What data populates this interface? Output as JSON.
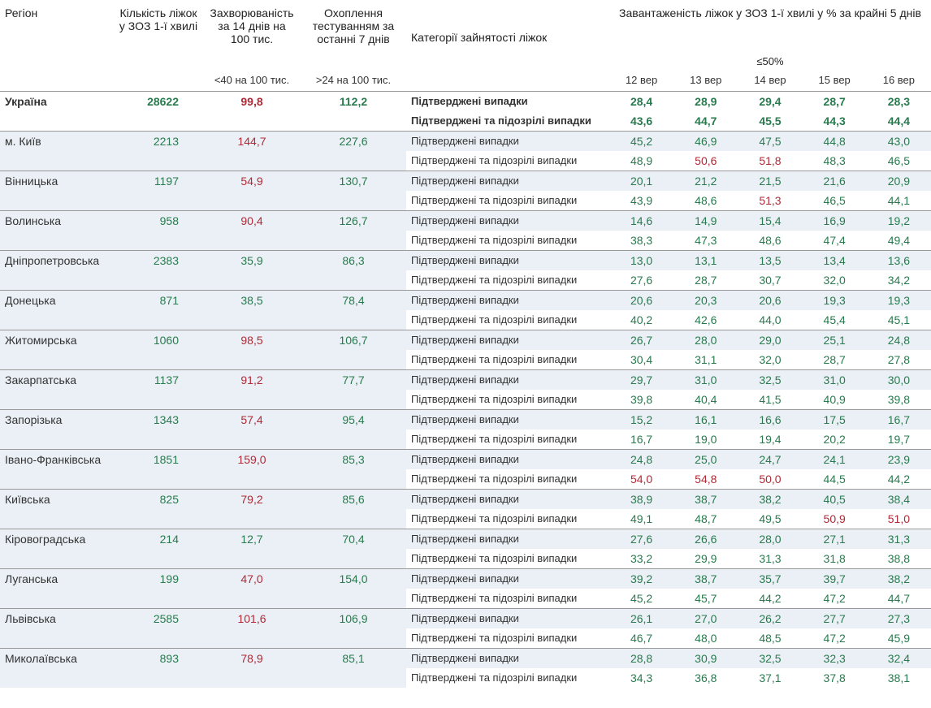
{
  "headers": {
    "region": "Регіон",
    "beds": "Кількість ліжок у ЗОЗ 1-ї хвилі",
    "incidence": "Захворюваність за 14 днів на 100 тис.",
    "testing": "Охоплення тестуванням за останні 7 днів",
    "category": "Категорії зайнятості ліжок",
    "occupancy": "Завантаженість ліжок у ЗОЗ 1-ї хвилі у % за крайні 5 днів",
    "threshold_incidence": "<40 на 100 тис.",
    "threshold_testing": ">24 на 100 тис.",
    "threshold_occupancy": "≤50%",
    "dates": [
      "12 вер",
      "13 вер",
      "14 вер",
      "15 вер",
      "16 вер"
    ]
  },
  "categories": {
    "confirmed": "Підтверджені випадки",
    "suspected": "Підтверджені та підозрілі випадки"
  },
  "colors": {
    "green": "#2a7a4f",
    "red": "#b02a37",
    "black": "#222222",
    "row_alt_bg": "#eaf0f5",
    "border": "#999999"
  },
  "threshold_red": 50.0,
  "regions": [
    {
      "name": "Україна",
      "bold": true,
      "beds": "28622",
      "incidence": "99,8",
      "incidence_red": true,
      "testing": "112,2",
      "rows": [
        {
          "cat": "confirmed",
          "bold": true,
          "vals": [
            "28,4",
            "28,9",
            "29,4",
            "28,7",
            "28,3"
          ],
          "red": [
            false,
            false,
            false,
            false,
            false
          ]
        },
        {
          "cat": "suspected",
          "bold": true,
          "vals": [
            "43,6",
            "44,7",
            "45,5",
            "44,3",
            "44,4"
          ],
          "red": [
            false,
            false,
            false,
            false,
            false
          ]
        }
      ]
    },
    {
      "name": "м. Київ",
      "beds": "2213",
      "incidence": "144,7",
      "incidence_red": true,
      "testing": "227,6",
      "rows": [
        {
          "cat": "confirmed",
          "vals": [
            "45,2",
            "46,9",
            "47,5",
            "44,8",
            "43,0"
          ],
          "red": [
            false,
            false,
            false,
            false,
            false
          ]
        },
        {
          "cat": "suspected",
          "vals": [
            "48,9",
            "50,6",
            "51,8",
            "48,3",
            "46,5"
          ],
          "red": [
            false,
            true,
            true,
            false,
            false
          ]
        }
      ]
    },
    {
      "name": "Вінницька",
      "beds": "1197",
      "incidence": "54,9",
      "incidence_red": true,
      "testing": "130,7",
      "rows": [
        {
          "cat": "confirmed",
          "vals": [
            "20,1",
            "21,2",
            "21,5",
            "21,6",
            "20,9"
          ],
          "red": [
            false,
            false,
            false,
            false,
            false
          ]
        },
        {
          "cat": "suspected",
          "vals": [
            "43,9",
            "48,6",
            "51,3",
            "46,5",
            "44,1"
          ],
          "red": [
            false,
            false,
            true,
            false,
            false
          ]
        }
      ]
    },
    {
      "name": "Волинська",
      "beds": "958",
      "incidence": "90,4",
      "incidence_red": true,
      "testing": "126,7",
      "rows": [
        {
          "cat": "confirmed",
          "vals": [
            "14,6",
            "14,9",
            "15,4",
            "16,9",
            "19,2"
          ],
          "red": [
            false,
            false,
            false,
            false,
            false
          ]
        },
        {
          "cat": "suspected",
          "vals": [
            "38,3",
            "47,3",
            "48,6",
            "47,4",
            "49,4"
          ],
          "red": [
            false,
            false,
            false,
            false,
            false
          ]
        }
      ]
    },
    {
      "name": "Дніпропетровська",
      "beds": "2383",
      "incidence": "35,9",
      "incidence_red": false,
      "testing": "86,3",
      "rows": [
        {
          "cat": "confirmed",
          "vals": [
            "13,0",
            "13,1",
            "13,5",
            "13,4",
            "13,6"
          ],
          "red": [
            false,
            false,
            false,
            false,
            false
          ]
        },
        {
          "cat": "suspected",
          "vals": [
            "27,6",
            "28,7",
            "30,7",
            "32,0",
            "34,2"
          ],
          "red": [
            false,
            false,
            false,
            false,
            false
          ]
        }
      ]
    },
    {
      "name": "Донецька",
      "beds": "871",
      "incidence": "38,5",
      "incidence_red": false,
      "testing": "78,4",
      "rows": [
        {
          "cat": "confirmed",
          "vals": [
            "20,6",
            "20,3",
            "20,6",
            "19,3",
            "19,3"
          ],
          "red": [
            false,
            false,
            false,
            false,
            false
          ]
        },
        {
          "cat": "suspected",
          "vals": [
            "40,2",
            "42,6",
            "44,0",
            "45,4",
            "45,1"
          ],
          "red": [
            false,
            false,
            false,
            false,
            false
          ]
        }
      ]
    },
    {
      "name": "Житомирська",
      "beds": "1060",
      "incidence": "98,5",
      "incidence_red": true,
      "testing": "106,7",
      "rows": [
        {
          "cat": "confirmed",
          "vals": [
            "26,7",
            "28,0",
            "29,0",
            "25,1",
            "24,8"
          ],
          "red": [
            false,
            false,
            false,
            false,
            false
          ]
        },
        {
          "cat": "suspected",
          "vals": [
            "30,4",
            "31,1",
            "32,0",
            "28,7",
            "27,8"
          ],
          "red": [
            false,
            false,
            false,
            false,
            false
          ]
        }
      ]
    },
    {
      "name": "Закарпатська",
      "beds": "1137",
      "incidence": "91,2",
      "incidence_red": true,
      "testing": "77,7",
      "rows": [
        {
          "cat": "confirmed",
          "vals": [
            "29,7",
            "31,0",
            "32,5",
            "31,0",
            "30,0"
          ],
          "red": [
            false,
            false,
            false,
            false,
            false
          ]
        },
        {
          "cat": "suspected",
          "vals": [
            "39,8",
            "40,4",
            "41,5",
            "40,9",
            "39,8"
          ],
          "red": [
            false,
            false,
            false,
            false,
            false
          ]
        }
      ]
    },
    {
      "name": "Запорізька",
      "beds": "1343",
      "incidence": "57,4",
      "incidence_red": true,
      "testing": "95,4",
      "rows": [
        {
          "cat": "confirmed",
          "vals": [
            "15,2",
            "16,1",
            "16,6",
            "17,5",
            "16,7"
          ],
          "red": [
            false,
            false,
            false,
            false,
            false
          ]
        },
        {
          "cat": "suspected",
          "vals": [
            "16,7",
            "19,0",
            "19,4",
            "20,2",
            "19,7"
          ],
          "red": [
            false,
            false,
            false,
            false,
            false
          ]
        }
      ]
    },
    {
      "name": "Івано-Франківська",
      "beds": "1851",
      "incidence": "159,0",
      "incidence_red": true,
      "testing": "85,3",
      "rows": [
        {
          "cat": "confirmed",
          "vals": [
            "24,8",
            "25,0",
            "24,7",
            "24,1",
            "23,9"
          ],
          "red": [
            false,
            false,
            false,
            false,
            false
          ]
        },
        {
          "cat": "suspected",
          "vals": [
            "54,0",
            "54,8",
            "50,0",
            "44,5",
            "44,2"
          ],
          "red": [
            true,
            true,
            true,
            false,
            false
          ]
        }
      ]
    },
    {
      "name": "Київська",
      "beds": "825",
      "incidence": "79,2",
      "incidence_red": true,
      "testing": "85,6",
      "rows": [
        {
          "cat": "confirmed",
          "vals": [
            "38,9",
            "38,7",
            "38,2",
            "40,5",
            "38,4"
          ],
          "red": [
            false,
            false,
            false,
            false,
            false
          ]
        },
        {
          "cat": "suspected",
          "vals": [
            "49,1",
            "48,7",
            "49,5",
            "50,9",
            "51,0"
          ],
          "red": [
            false,
            false,
            false,
            true,
            true
          ]
        }
      ]
    },
    {
      "name": "Кіровоградська",
      "beds": "214",
      "incidence": "12,7",
      "incidence_red": false,
      "testing": "70,4",
      "rows": [
        {
          "cat": "confirmed",
          "vals": [
            "27,6",
            "26,6",
            "28,0",
            "27,1",
            "31,3"
          ],
          "red": [
            false,
            false,
            false,
            false,
            false
          ]
        },
        {
          "cat": "suspected",
          "vals": [
            "33,2",
            "29,9",
            "31,3",
            "31,8",
            "38,8"
          ],
          "red": [
            false,
            false,
            false,
            false,
            false
          ]
        }
      ]
    },
    {
      "name": "Луганська",
      "beds": "199",
      "incidence": "47,0",
      "incidence_red": true,
      "testing": "154,0",
      "rows": [
        {
          "cat": "confirmed",
          "vals": [
            "39,2",
            "38,7",
            "35,7",
            "39,7",
            "38,2"
          ],
          "red": [
            false,
            false,
            false,
            false,
            false
          ]
        },
        {
          "cat": "suspected",
          "vals": [
            "45,2",
            "45,7",
            "44,2",
            "47,2",
            "44,7"
          ],
          "red": [
            false,
            false,
            false,
            false,
            false
          ]
        }
      ]
    },
    {
      "name": "Львівська",
      "beds": "2585",
      "incidence": "101,6",
      "incidence_red": true,
      "testing": "106,9",
      "rows": [
        {
          "cat": "confirmed",
          "vals": [
            "26,1",
            "27,0",
            "26,2",
            "27,7",
            "27,3"
          ],
          "red": [
            false,
            false,
            false,
            false,
            false
          ]
        },
        {
          "cat": "suspected",
          "vals": [
            "46,7",
            "48,0",
            "48,5",
            "47,2",
            "45,9"
          ],
          "red": [
            false,
            false,
            false,
            false,
            false
          ]
        }
      ]
    },
    {
      "name": "Миколаївська",
      "beds": "893",
      "incidence": "78,9",
      "incidence_red": true,
      "testing": "85,1",
      "rows": [
        {
          "cat": "confirmed",
          "vals": [
            "28,8",
            "30,9",
            "32,5",
            "32,3",
            "32,4"
          ],
          "red": [
            false,
            false,
            false,
            false,
            false
          ]
        },
        {
          "cat": "suspected",
          "vals": [
            "34,3",
            "36,8",
            "37,1",
            "37,8",
            "38,1"
          ],
          "red": [
            false,
            false,
            false,
            false,
            false
          ]
        }
      ]
    }
  ]
}
